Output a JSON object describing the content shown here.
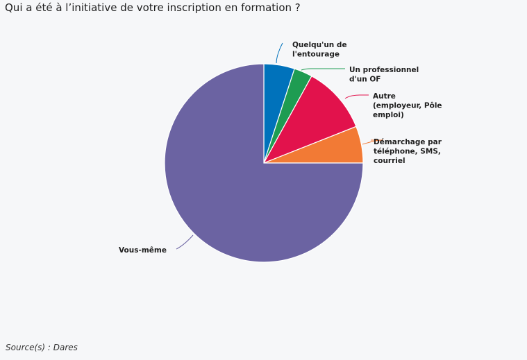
{
  "title": "Qui a été à l’initiative de votre inscription en formation ?",
  "source": "Source(s) : Dares",
  "chart_data": {
    "type": "pie",
    "title": "Qui a été à l’initiative de votre inscription en formation ?",
    "unit": "%",
    "slices": [
      {
        "name": "Quelqu'un de l'entourage",
        "label_lines": [
          "Quelqu'un de",
          "l'entourage"
        ],
        "value": 5,
        "color": "#0072bb"
      },
      {
        "name": "Un professionnel d'un OF",
        "label_lines": [
          "Un professionnel",
          "d'un OF"
        ],
        "value": 3,
        "color": "#1e9c52"
      },
      {
        "name": "Autre (employeur, Pôle emploi)",
        "label_lines": [
          "Autre",
          "(employeur, Pôle",
          "emploi)"
        ],
        "value": 11,
        "color": "#e2124c"
      },
      {
        "name": "Démarchage par téléphone, SMS, courriel",
        "label_lines": [
          "Démarchage par",
          "téléphone, SMS,",
          "courriel"
        ],
        "value": 6,
        "color": "#f27a35"
      },
      {
        "name": "Vous-même",
        "label_lines": [
          "Vous-même"
        ],
        "value": 75,
        "color": "#6b63a2"
      }
    ],
    "start": "12 o'clock",
    "direction": "clockwise",
    "legend": "none (direct labels)"
  }
}
